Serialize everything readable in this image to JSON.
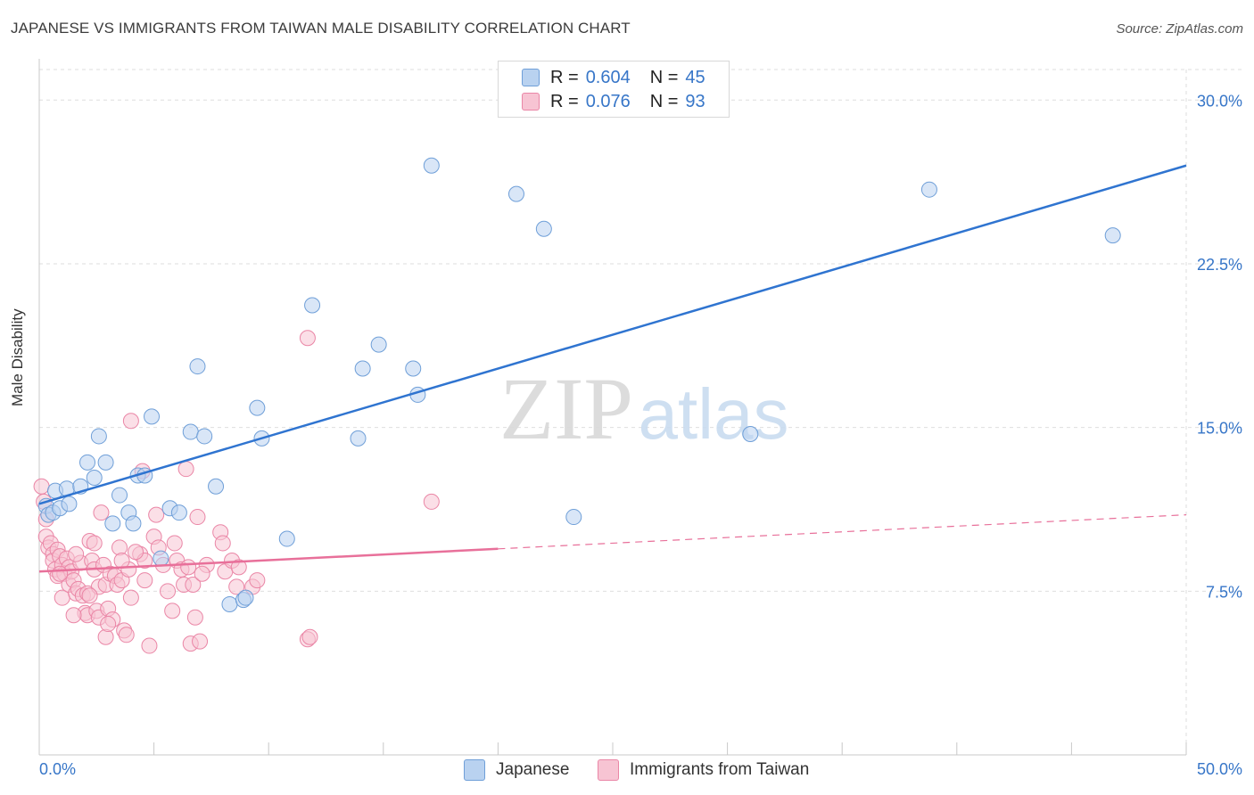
{
  "title": "JAPANESE VS IMMIGRANTS FROM TAIWAN MALE DISABILITY CORRELATION CHART",
  "source": "Source: ZipAtlas.com",
  "watermark": {
    "zip": "ZIP",
    "atlas": "atlas"
  },
  "legend": {
    "rows": [
      {
        "r_label": "R =",
        "r_value": "0.604",
        "n_label": "N =",
        "n_value": "45"
      },
      {
        "r_label": "R =",
        "r_value": "0.076",
        "n_label": "N =",
        "n_value": "93"
      }
    ]
  },
  "bottom_legend": [
    "Japanese",
    "Immigrants from Taiwan"
  ],
  "colors": {
    "blue_fill": "#b9d2f0",
    "blue_stroke": "#6f9fd8",
    "blue_line": "#2f74d0",
    "pink_fill": "#f7c4d3",
    "pink_stroke": "#ea86a6",
    "pink_line": "#e8709a",
    "grid": "#dedede",
    "tick_label": "#3776c8"
  },
  "chart_data": {
    "type": "scatter",
    "xlabel": "",
    "ylabel": "Male Disability",
    "xlim": [
      0,
      50
    ],
    "ylim": [
      0,
      31.4
    ],
    "x_tick_labels": [
      "0.0%",
      "50.0%"
    ],
    "y_ticks": [
      7.5,
      15.0,
      22.5,
      30.0
    ],
    "y_tick_labels": [
      "7.5%",
      "15.0%",
      "22.5%",
      "30.0%"
    ],
    "grid": true,
    "series": [
      {
        "name": "Japanese",
        "r": 0.604,
        "n": 45,
        "trend": {
          "x": [
            0,
            50
          ],
          "y": [
            11.5,
            27.0
          ],
          "dashed_from": null
        },
        "points": [
          [
            0.3,
            11.4
          ],
          [
            0.4,
            11.0
          ],
          [
            0.6,
            11.1
          ],
          [
            0.7,
            12.1
          ],
          [
            0.9,
            11.3
          ],
          [
            1.2,
            12.2
          ],
          [
            1.3,
            11.5
          ],
          [
            1.8,
            12.3
          ],
          [
            2.1,
            13.4
          ],
          [
            2.4,
            12.7
          ],
          [
            2.6,
            14.6
          ],
          [
            2.9,
            13.4
          ],
          [
            3.2,
            10.6
          ],
          [
            3.5,
            11.9
          ],
          [
            3.9,
            11.1
          ],
          [
            4.1,
            10.6
          ],
          [
            4.3,
            12.8
          ],
          [
            4.6,
            12.8
          ],
          [
            4.9,
            15.5
          ],
          [
            5.3,
            9.0
          ],
          [
            5.7,
            11.3
          ],
          [
            6.1,
            11.1
          ],
          [
            6.6,
            14.8
          ],
          [
            6.9,
            17.8
          ],
          [
            7.2,
            14.6
          ],
          [
            7.7,
            12.3
          ],
          [
            8.3,
            6.9
          ],
          [
            8.9,
            7.1
          ],
          [
            9.0,
            7.2
          ],
          [
            9.5,
            15.9
          ],
          [
            9.7,
            14.5
          ],
          [
            10.8,
            9.9
          ],
          [
            11.9,
            20.6
          ],
          [
            13.9,
            14.5
          ],
          [
            14.1,
            17.7
          ],
          [
            14.8,
            18.8
          ],
          [
            16.3,
            17.7
          ],
          [
            16.5,
            16.5
          ],
          [
            17.1,
            27.0
          ],
          [
            20.8,
            25.7
          ],
          [
            22.0,
            24.1
          ],
          [
            31.0,
            14.7
          ],
          [
            38.8,
            25.9
          ],
          [
            46.8,
            23.8
          ],
          [
            23.3,
            10.9
          ]
        ]
      },
      {
        "name": "Immigrants from Taiwan",
        "r": 0.076,
        "n": 93,
        "trend": {
          "x": [
            0,
            50
          ],
          "y": [
            8.4,
            11.0
          ],
          "dashed_from": 20.0
        },
        "points": [
          [
            0.1,
            12.3
          ],
          [
            0.2,
            11.6
          ],
          [
            0.3,
            10.8
          ],
          [
            0.3,
            10.0
          ],
          [
            0.4,
            9.5
          ],
          [
            0.5,
            9.7
          ],
          [
            0.6,
            9.2
          ],
          [
            0.6,
            8.9
          ],
          [
            0.7,
            8.5
          ],
          [
            0.8,
            9.4
          ],
          [
            0.8,
            8.2
          ],
          [
            0.9,
            9.1
          ],
          [
            1.0,
            8.7
          ],
          [
            1.0,
            7.2
          ],
          [
            1.1,
            8.3
          ],
          [
            1.2,
            9.0
          ],
          [
            1.3,
            8.6
          ],
          [
            1.3,
            7.8
          ],
          [
            1.4,
            8.4
          ],
          [
            1.5,
            8.0
          ],
          [
            1.6,
            7.4
          ],
          [
            1.7,
            7.6
          ],
          [
            1.8,
            8.8
          ],
          [
            1.9,
            7.3
          ],
          [
            2.0,
            6.5
          ],
          [
            2.1,
            7.4
          ],
          [
            2.1,
            6.4
          ],
          [
            2.2,
            9.8
          ],
          [
            2.3,
            8.9
          ],
          [
            2.4,
            8.5
          ],
          [
            2.5,
            6.6
          ],
          [
            2.6,
            6.3
          ],
          [
            2.6,
            7.7
          ],
          [
            2.7,
            11.1
          ],
          [
            2.8,
            8.7
          ],
          [
            2.9,
            7.8
          ],
          [
            2.9,
            5.4
          ],
          [
            3.0,
            6.7
          ],
          [
            3.1,
            8.3
          ],
          [
            3.2,
            6.2
          ],
          [
            3.3,
            8.2
          ],
          [
            3.4,
            7.8
          ],
          [
            3.5,
            9.5
          ],
          [
            3.6,
            8.0
          ],
          [
            3.7,
            5.7
          ],
          [
            3.8,
            5.5
          ],
          [
            3.9,
            8.5
          ],
          [
            4.0,
            7.2
          ],
          [
            4.0,
            15.3
          ],
          [
            4.4,
            9.2
          ],
          [
            4.5,
            13.0
          ],
          [
            4.6,
            8.9
          ],
          [
            4.6,
            8.0
          ],
          [
            4.8,
            5.0
          ],
          [
            5.0,
            10.0
          ],
          [
            5.1,
            11.0
          ],
          [
            5.2,
            9.5
          ],
          [
            5.4,
            8.7
          ],
          [
            5.6,
            7.5
          ],
          [
            5.8,
            6.6
          ],
          [
            6.0,
            8.9
          ],
          [
            6.2,
            8.5
          ],
          [
            6.3,
            7.8
          ],
          [
            6.4,
            13.1
          ],
          [
            6.5,
            8.6
          ],
          [
            6.6,
            5.1
          ],
          [
            6.7,
            7.8
          ],
          [
            6.8,
            6.3
          ],
          [
            6.9,
            10.9
          ],
          [
            7.0,
            5.2
          ],
          [
            7.3,
            8.7
          ],
          [
            7.9,
            10.2
          ],
          [
            8.0,
            9.7
          ],
          [
            8.1,
            8.4
          ],
          [
            8.4,
            8.9
          ],
          [
            8.6,
            7.7
          ],
          [
            8.7,
            8.6
          ],
          [
            9.3,
            7.7
          ],
          [
            9.5,
            8.0
          ],
          [
            11.7,
            5.3
          ],
          [
            11.8,
            5.4
          ],
          [
            11.7,
            19.1
          ],
          [
            17.1,
            11.6
          ],
          [
            1.5,
            6.4
          ],
          [
            2.2,
            7.3
          ],
          [
            3.0,
            6.0
          ],
          [
            4.2,
            9.3
          ],
          [
            5.9,
            9.7
          ],
          [
            7.1,
            8.3
          ],
          [
            0.9,
            8.3
          ],
          [
            1.6,
            9.2
          ],
          [
            2.4,
            9.7
          ],
          [
            3.6,
            8.9
          ]
        ]
      }
    ]
  }
}
